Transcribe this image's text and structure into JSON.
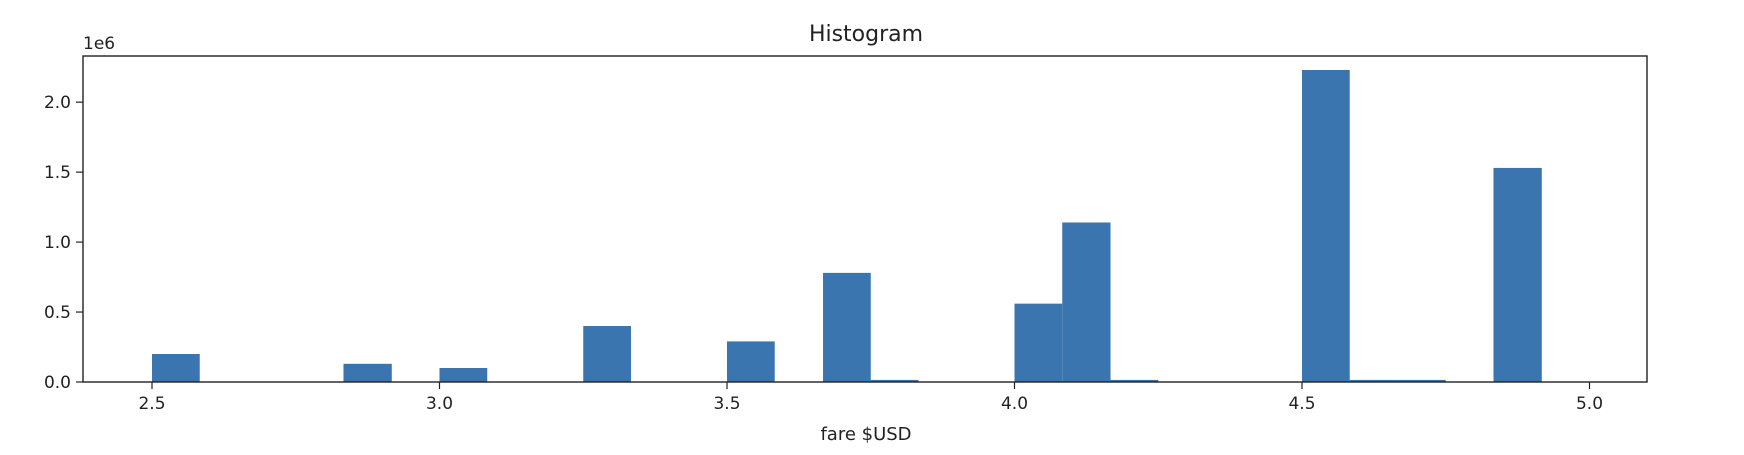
{
  "chart_data": {
    "type": "bar",
    "title": "Histogram",
    "xlabel": "fare $USD",
    "ylabel": "",
    "y_offset_label": "1e6",
    "xlim": [
      2.38,
      5.1
    ],
    "ylim": [
      0,
      2.33
    ],
    "xticks": [
      2.5,
      3.0,
      3.5,
      4.0,
      4.5,
      5.0
    ],
    "xtick_labels": [
      "2.5",
      "3.0",
      "3.5",
      "4.0",
      "4.5",
      "5.0"
    ],
    "yticks": [
      0.0,
      0.5,
      1.0,
      1.5,
      2.0
    ],
    "ytick_labels": [
      "0.0",
      "0.5",
      "1.0",
      "1.5",
      "2.0"
    ],
    "bar_color": "#3a75af",
    "grid": false,
    "legend": false,
    "bins": [
      {
        "x0": 2.5,
        "x1": 2.583,
        "value": 0.2
      },
      {
        "x0": 2.833,
        "x1": 2.917,
        "value": 0.13
      },
      {
        "x0": 3.0,
        "x1": 3.083,
        "value": 0.1
      },
      {
        "x0": 3.25,
        "x1": 3.333,
        "value": 0.4
      },
      {
        "x0": 3.5,
        "x1": 3.583,
        "value": 0.29
      },
      {
        "x0": 3.667,
        "x1": 3.75,
        "value": 0.78
      },
      {
        "x0": 3.75,
        "x1": 3.833,
        "value": 0.015
      },
      {
        "x0": 4.0,
        "x1": 4.083,
        "value": 0.56
      },
      {
        "x0": 4.083,
        "x1": 4.167,
        "value": 1.14
      },
      {
        "x0": 4.167,
        "x1": 4.25,
        "value": 0.015
      },
      {
        "x0": 4.5,
        "x1": 4.583,
        "value": 2.23
      },
      {
        "x0": 4.583,
        "x1": 4.667,
        "value": 0.015
      },
      {
        "x0": 4.667,
        "x1": 4.75,
        "value": 0.015
      },
      {
        "x0": 4.833,
        "x1": 4.917,
        "value": 1.53
      }
    ]
  }
}
